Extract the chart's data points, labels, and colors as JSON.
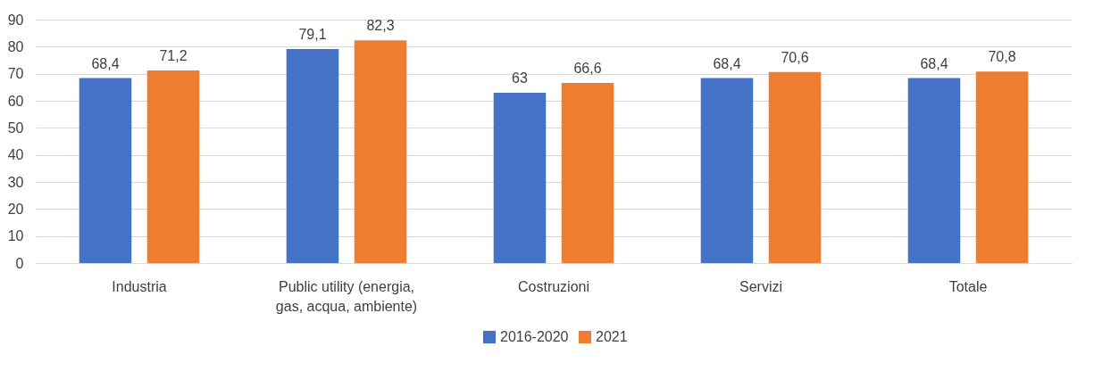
{
  "chart_data": {
    "type": "bar",
    "categories": [
      "Industria",
      "Public utility (energia, gas, acqua, ambiente)",
      "Costruzioni",
      "Servizi",
      "Totale"
    ],
    "series": [
      {
        "name": "2016-2020",
        "color": "#4472c4",
        "values": [
          68.4,
          79.1,
          63,
          68.4,
          68.4
        ],
        "value_labels": [
          "68,4",
          "79,1",
          "63",
          "68,4",
          "68,4"
        ]
      },
      {
        "name": "2021",
        "color": "#ed7d31",
        "values": [
          71.2,
          82.3,
          66.6,
          70.6,
          70.8
        ],
        "value_labels": [
          "71,2",
          "82,3",
          "66,6",
          "70,6",
          "70,8"
        ]
      }
    ],
    "ylim": [
      0,
      90
    ],
    "yticks": [
      0,
      10,
      20,
      30,
      40,
      50,
      60,
      70,
      80,
      90
    ],
    "grid": "y",
    "legend": "bottom"
  }
}
